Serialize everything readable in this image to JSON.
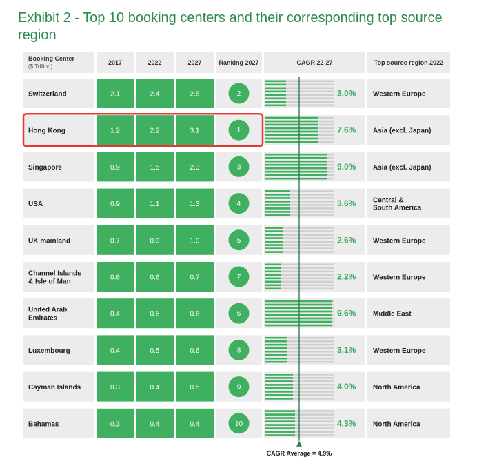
{
  "title": "Exhibit 2 - Top 10 booking centers and their corresponding top source region",
  "colors": {
    "green": "#3fb05f",
    "cagr_text": "#3daa5c",
    "title": "#2f8a4d",
    "grey_panel": "#ececec",
    "bar_track": "#cfcfcf",
    "highlight": "#e53935",
    "axis": "#2e7d4f"
  },
  "headers": {
    "booking_center": "Booking Center",
    "booking_center_unit": "($ Trillion)",
    "y2017": "2017",
    "y2022": "2022",
    "y2027": "2027",
    "ranking": "Ranking 2027",
    "cagr": "CAGR 22-27",
    "region": "Top source region 2022"
  },
  "footer": {
    "cagr_average_label": "CAGR Average = 4.9%"
  },
  "highlighted_row": "Hong Kong",
  "chart_data": {
    "type": "table",
    "unit": "$ Trillion",
    "columns": [
      "Booking Center",
      "2017",
      "2022",
      "2027",
      "Ranking 2027",
      "CAGR 22-27",
      "Top source region 2022"
    ],
    "cagr_average": 4.9,
    "cagr_axis_max": 10,
    "rows": [
      {
        "center": [
          "Switzerland"
        ],
        "v2017": "2.1",
        "v2022": "2.4",
        "v2027": "2.8",
        "rank": "2",
        "cagr": 3.0,
        "cagr_label": "3.0%",
        "region": [
          "Western Europe"
        ]
      },
      {
        "center": [
          "Hong Kong"
        ],
        "v2017": "1.2",
        "v2022": "2.2",
        "v2027": "3.1",
        "rank": "1",
        "cagr": 7.6,
        "cagr_label": "7.6%",
        "region": [
          "Asia (excl. Japan)"
        ]
      },
      {
        "center": [
          "Singapore"
        ],
        "v2017": "0.9",
        "v2022": "1.5",
        "v2027": "2.3",
        "rank": "3",
        "cagr": 9.0,
        "cagr_label": "9.0%",
        "region": [
          "Asia (excl. Japan)"
        ]
      },
      {
        "center": [
          "USA"
        ],
        "v2017": "0.9",
        "v2022": "1.1",
        "v2027": "1.3",
        "rank": "4",
        "cagr": 3.6,
        "cagr_label": "3.6%",
        "region": [
          "Central &",
          "South America"
        ]
      },
      {
        "center": [
          "UK mainland"
        ],
        "v2017": "0.7",
        "v2022": "0.9",
        "v2027": "1.0",
        "rank": "5",
        "cagr": 2.6,
        "cagr_label": "2.6%",
        "region": [
          "Western Europe"
        ]
      },
      {
        "center": [
          "Channel Islands",
          "& Isle of Man"
        ],
        "v2017": "0.6",
        "v2022": "0.6",
        "v2027": "0.7",
        "rank": "7",
        "cagr": 2.2,
        "cagr_label": "2.2%",
        "region": [
          "Western Europe"
        ]
      },
      {
        "center": [
          "United Arab",
          "Emirates"
        ],
        "v2017": "0.4",
        "v2022": "0.5",
        "v2027": "0.8",
        "rank": "6",
        "cagr": 9.6,
        "cagr_label": "9.6%",
        "region": [
          "Middle East"
        ]
      },
      {
        "center": [
          "Luxembourg"
        ],
        "v2017": "0.4",
        "v2022": "0.5",
        "v2027": "0.6",
        "rank": "8",
        "cagr": 3.1,
        "cagr_label": "3.1%",
        "region": [
          "Western Europe"
        ]
      },
      {
        "center": [
          "Cayman Islands"
        ],
        "v2017": "0.3",
        "v2022": "0.4",
        "v2027": "0.5",
        "rank": "9",
        "cagr": 4.0,
        "cagr_label": "4.0%",
        "region": [
          "North America"
        ]
      },
      {
        "center": [
          "Bahamas"
        ],
        "v2017": "0.3",
        "v2022": "0.4",
        "v2027": "0.4",
        "rank": "10",
        "cagr": 4.3,
        "cagr_label": "4.3%",
        "region": [
          "North America"
        ]
      }
    ]
  }
}
